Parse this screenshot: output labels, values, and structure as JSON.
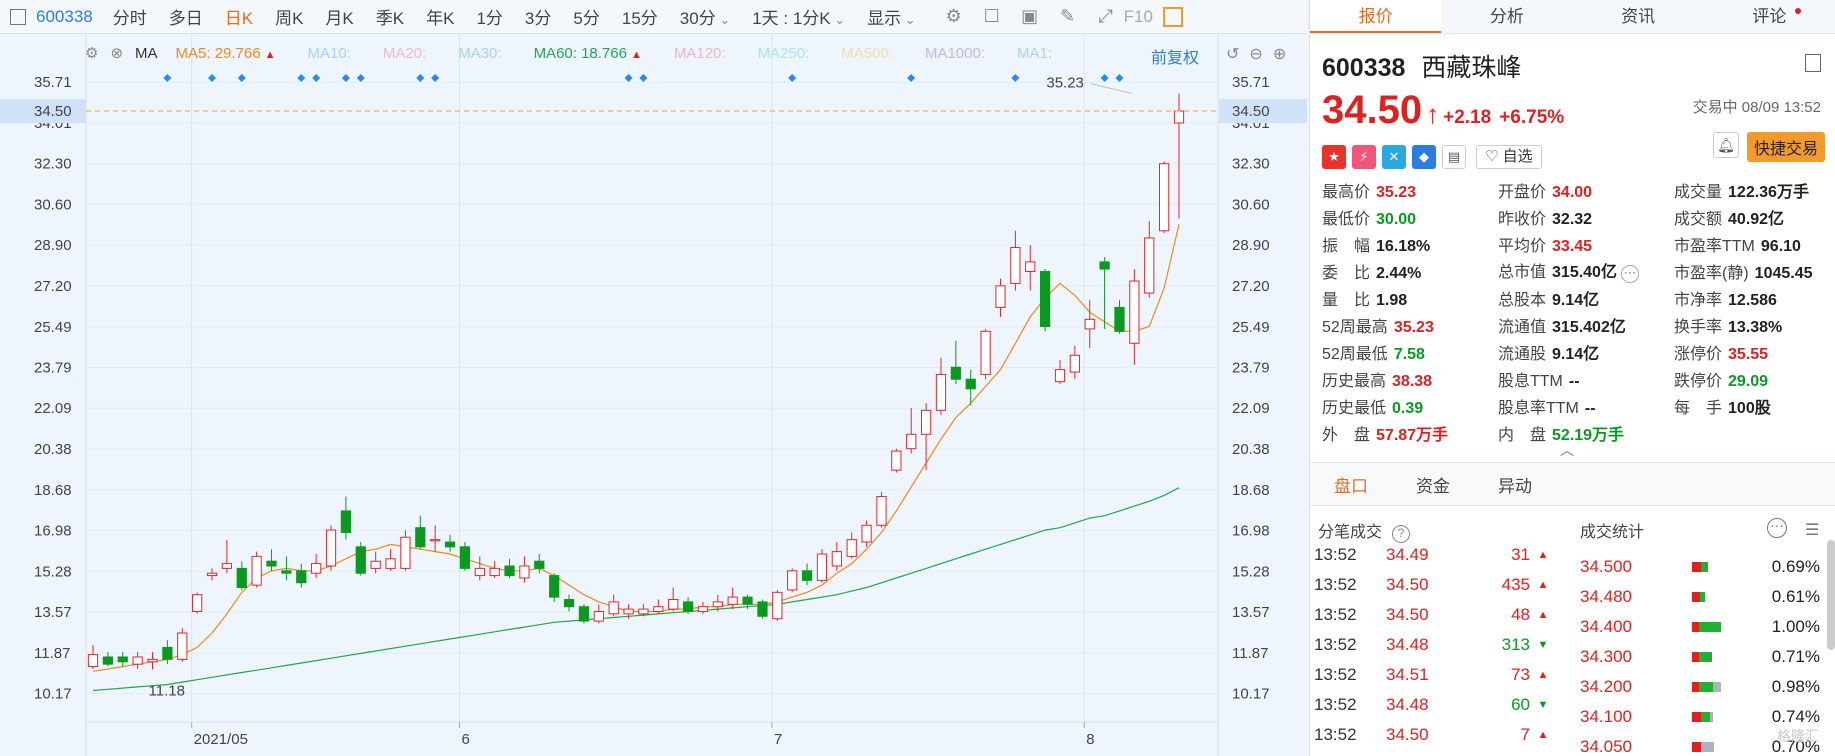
{
  "toolbar": {
    "code": "600338",
    "periods": [
      {
        "label": "分时",
        "active": false
      },
      {
        "label": "多日",
        "active": false
      },
      {
        "label": "日K",
        "active": true
      },
      {
        "label": "周K",
        "active": false
      },
      {
        "label": "月K",
        "active": false
      },
      {
        "label": "季K",
        "active": false
      },
      {
        "label": "年K",
        "active": false
      },
      {
        "label": "1分",
        "active": false
      },
      {
        "label": "3分",
        "active": false
      },
      {
        "label": "5分",
        "active": false
      },
      {
        "label": "15分",
        "active": false
      },
      {
        "label": "30分",
        "active": false
      }
    ],
    "range_select": "1天 : 1分K",
    "display_label": "显示",
    "f10_label": "F10"
  },
  "ma_line": {
    "type_label": "MA",
    "items": [
      {
        "label": "MA5: 29.766",
        "color": "#f08a1e",
        "arrow": true
      },
      {
        "label": "MA10:",
        "color": "#a9d2f2"
      },
      {
        "label": "MA20:",
        "color": "#f4b6d4"
      },
      {
        "label": "MA30:",
        "color": "#a9d2f2"
      },
      {
        "label": "MA60: 18.766",
        "color": "#22a84e",
        "arrow": true
      },
      {
        "label": "MA120:",
        "color": "#f4b6c4"
      },
      {
        "label": "MA250:",
        "color": "#a9e6f2"
      },
      {
        "label": "MA500:",
        "color": "#f2e0a9"
      },
      {
        "label": "MA1000:",
        "color": "#c4b6f2"
      },
      {
        "label": "MA1:",
        "color": "#a9d2f2"
      }
    ],
    "adjust_label": "前复权"
  },
  "chart_data": {
    "type": "candlestick",
    "y_ticks": [
      35.71,
      34.01,
      32.3,
      30.6,
      28.9,
      27.2,
      25.49,
      23.79,
      22.09,
      20.38,
      18.68,
      16.98,
      15.28,
      13.57,
      11.87,
      10.17
    ],
    "ylim": [
      8.4,
      37.3
    ],
    "x_labels": [
      {
        "label": "2021/05",
        "index": 7
      },
      {
        "label": "6",
        "index": 25
      },
      {
        "label": "7",
        "index": 46
      },
      {
        "label": "8",
        "index": 67
      }
    ],
    "current_price": 34.5,
    "annotations": [
      {
        "label": "35.23",
        "index": 70,
        "value": 35.23
      },
      {
        "label": "11.18",
        "index": 4,
        "value": 11.18
      }
    ],
    "markers_index": [
      5,
      8,
      10,
      14,
      15,
      17,
      18,
      22,
      23,
      36,
      37,
      47,
      55,
      62,
      68,
      69
    ],
    "candles": [
      {
        "o": 11.3,
        "c": 11.8,
        "h": 12.2,
        "l": 11.2
      },
      {
        "o": 11.7,
        "c": 11.4,
        "h": 11.9,
        "l": 11.3
      },
      {
        "o": 11.7,
        "c": 11.5,
        "h": 11.9,
        "l": 11.3
      },
      {
        "o": 11.4,
        "c": 11.7,
        "h": 11.9,
        "l": 11.2
      },
      {
        "o": 11.5,
        "c": 11.6,
        "h": 11.9,
        "l": 11.18
      },
      {
        "o": 12.1,
        "c": 11.6,
        "h": 12.4,
        "l": 11.4
      },
      {
        "o": 11.6,
        "c": 12.7,
        "h": 12.9,
        "l": 11.5
      },
      {
        "o": 13.6,
        "c": 14.3,
        "h": 14.4,
        "l": 13.5
      },
      {
        "o": 15.1,
        "c": 15.2,
        "h": 15.4,
        "l": 14.9
      },
      {
        "o": 15.4,
        "c": 15.6,
        "h": 16.6,
        "l": 15.2
      },
      {
        "o": 15.4,
        "c": 14.6,
        "h": 15.7,
        "l": 14.5
      },
      {
        "o": 14.7,
        "c": 15.9,
        "h": 16.1,
        "l": 14.6
      },
      {
        "o": 15.7,
        "c": 15.5,
        "h": 16.2,
        "l": 15.3
      },
      {
        "o": 15.3,
        "c": 15.2,
        "h": 15.9,
        "l": 14.9
      },
      {
        "o": 15.3,
        "c": 14.8,
        "h": 15.6,
        "l": 14.6
      },
      {
        "o": 15.2,
        "c": 15.6,
        "h": 16.0,
        "l": 15.0
      },
      {
        "o": 15.5,
        "c": 17.0,
        "h": 17.2,
        "l": 15.3
      },
      {
        "o": 17.8,
        "c": 16.9,
        "h": 18.4,
        "l": 16.6
      },
      {
        "o": 16.3,
        "c": 15.2,
        "h": 16.5,
        "l": 15.1
      },
      {
        "o": 15.4,
        "c": 15.7,
        "h": 16.1,
        "l": 15.2
      },
      {
        "o": 15.4,
        "c": 15.8,
        "h": 16.2,
        "l": 15.3
      },
      {
        "o": 15.4,
        "c": 16.7,
        "h": 17.0,
        "l": 15.3
      },
      {
        "o": 17.1,
        "c": 16.3,
        "h": 17.6,
        "l": 16.2
      },
      {
        "o": 16.6,
        "c": 16.6,
        "h": 17.2,
        "l": 16.1
      },
      {
        "o": 16.5,
        "c": 16.3,
        "h": 16.8,
        "l": 16.1
      },
      {
        "o": 16.3,
        "c": 15.4,
        "h": 16.5,
        "l": 15.3
      },
      {
        "o": 15.1,
        "c": 15.4,
        "h": 15.9,
        "l": 14.9
      },
      {
        "o": 15.1,
        "c": 15.4,
        "h": 15.7,
        "l": 15.0
      },
      {
        "o": 15.5,
        "c": 15.1,
        "h": 15.8,
        "l": 15.0
      },
      {
        "o": 15.0,
        "c": 15.5,
        "h": 15.9,
        "l": 14.8
      },
      {
        "o": 15.7,
        "c": 15.4,
        "h": 16.0,
        "l": 15.2
      },
      {
        "o": 15.1,
        "c": 14.2,
        "h": 15.2,
        "l": 14.0
      },
      {
        "o": 14.1,
        "c": 13.8,
        "h": 14.3,
        "l": 13.6
      },
      {
        "o": 13.8,
        "c": 13.2,
        "h": 13.9,
        "l": 13.1
      },
      {
        "o": 13.2,
        "c": 13.6,
        "h": 13.9,
        "l": 13.1
      },
      {
        "o": 13.5,
        "c": 14.0,
        "h": 14.3,
        "l": 13.4
      },
      {
        "o": 13.5,
        "c": 13.7,
        "h": 13.9,
        "l": 13.3
      },
      {
        "o": 13.5,
        "c": 13.7,
        "h": 13.9,
        "l": 13.4
      },
      {
        "o": 13.6,
        "c": 13.8,
        "h": 14.1,
        "l": 13.5
      },
      {
        "o": 13.7,
        "c": 14.1,
        "h": 14.6,
        "l": 13.6
      },
      {
        "o": 14.0,
        "c": 13.6,
        "h": 14.2,
        "l": 13.5
      },
      {
        "o": 13.6,
        "c": 13.8,
        "h": 14.0,
        "l": 13.5
      },
      {
        "o": 13.8,
        "c": 14.0,
        "h": 14.3,
        "l": 13.6
      },
      {
        "o": 13.9,
        "c": 14.2,
        "h": 14.6,
        "l": 13.7
      },
      {
        "o": 14.2,
        "c": 13.9,
        "h": 14.3,
        "l": 13.7
      },
      {
        "o": 14.0,
        "c": 13.4,
        "h": 14.1,
        "l": 13.3
      },
      {
        "o": 13.3,
        "c": 14.4,
        "h": 14.5,
        "l": 13.2
      },
      {
        "o": 14.5,
        "c": 15.3,
        "h": 15.4,
        "l": 14.4
      },
      {
        "o": 15.3,
        "c": 14.9,
        "h": 15.6,
        "l": 14.7
      },
      {
        "o": 14.9,
        "c": 16.0,
        "h": 16.2,
        "l": 14.8
      },
      {
        "o": 15.5,
        "c": 16.1,
        "h": 16.5,
        "l": 15.3
      },
      {
        "o": 15.9,
        "c": 16.6,
        "h": 16.9,
        "l": 15.8
      },
      {
        "o": 16.5,
        "c": 17.2,
        "h": 17.4,
        "l": 16.3
      },
      {
        "o": 17.2,
        "c": 18.4,
        "h": 18.6,
        "l": 17.1
      },
      {
        "o": 19.5,
        "c": 20.3,
        "h": 20.4,
        "l": 19.4
      },
      {
        "o": 20.4,
        "c": 21.0,
        "h": 22.1,
        "l": 20.2
      },
      {
        "o": 21.0,
        "c": 22.0,
        "h": 22.3,
        "l": 19.5
      },
      {
        "o": 22.0,
        "c": 23.5,
        "h": 24.2,
        "l": 21.8
      },
      {
        "o": 23.8,
        "c": 23.3,
        "h": 24.9,
        "l": 23.1
      },
      {
        "o": 23.3,
        "c": 22.9,
        "h": 23.7,
        "l": 22.2
      },
      {
        "o": 23.5,
        "c": 25.3,
        "h": 25.4,
        "l": 23.3
      },
      {
        "o": 26.3,
        "c": 27.2,
        "h": 27.5,
        "l": 25.9
      },
      {
        "o": 27.3,
        "c": 28.8,
        "h": 29.5,
        "l": 27.0
      },
      {
        "o": 27.8,
        "c": 28.2,
        "h": 28.9,
        "l": 27.0
      },
      {
        "o": 27.8,
        "c": 25.5,
        "h": 27.9,
        "l": 25.3
      },
      {
        "o": 23.2,
        "c": 23.7,
        "h": 24.1,
        "l": 23.1
      },
      {
        "o": 23.6,
        "c": 24.3,
        "h": 24.7,
        "l": 23.3
      },
      {
        "o": 25.4,
        "c": 25.8,
        "h": 26.6,
        "l": 24.6
      },
      {
        "o": 28.2,
        "c": 27.9,
        "h": 28.4,
        "l": 25.4
      },
      {
        "o": 26.3,
        "c": 25.3,
        "h": 26.6,
        "l": 25.2
      },
      {
        "o": 24.8,
        "c": 27.4,
        "h": 27.9,
        "l": 23.9
      },
      {
        "o": 26.9,
        "c": 29.2,
        "h": 29.9,
        "l": 26.7
      },
      {
        "o": 29.5,
        "c": 32.3,
        "h": 32.4,
        "l": 29.4
      },
      {
        "o": 34.0,
        "c": 34.5,
        "h": 35.23,
        "l": 30.0
      }
    ],
    "ma5": [
      11.1,
      11.2,
      11.3,
      11.4,
      11.5,
      11.6,
      11.8,
      12.1,
      12.7,
      13.5,
      14.4,
      15.0,
      15.3,
      15.4,
      15.3,
      15.3,
      15.5,
      15.8,
      16.1,
      16.2,
      16.4,
      16.3,
      16.2,
      16.1,
      16.0,
      15.8,
      15.6,
      15.4,
      15.3,
      15.3,
      15.4,
      15.1,
      14.7,
      14.3,
      14.0,
      13.8,
      13.6,
      13.6,
      13.6,
      13.7,
      13.7,
      13.8,
      13.8,
      13.9,
      13.9,
      13.9,
      14.0,
      14.2,
      14.4,
      14.7,
      15.2,
      15.6,
      16.2,
      16.9,
      17.8,
      18.8,
      19.8,
      20.8,
      21.7,
      22.3,
      23.0,
      23.7,
      24.8,
      25.9,
      26.7,
      27.3,
      26.8,
      26.1,
      25.7,
      25.3,
      25.3,
      25.5,
      27.1,
      29.77
    ],
    "ma60": [
      10.3,
      10.35,
      10.4,
      10.45,
      10.5,
      10.55,
      10.65,
      10.75,
      10.85,
      10.95,
      11.05,
      11.15,
      11.25,
      11.35,
      11.45,
      11.55,
      11.65,
      11.75,
      11.85,
      11.95,
      12.05,
      12.15,
      12.25,
      12.35,
      12.45,
      12.55,
      12.65,
      12.75,
      12.85,
      12.95,
      13.05,
      13.15,
      13.2,
      13.25,
      13.3,
      13.35,
      13.4,
      13.45,
      13.5,
      13.55,
      13.6,
      13.65,
      13.7,
      13.75,
      13.8,
      13.85,
      13.9,
      14.0,
      14.1,
      14.2,
      14.3,
      14.45,
      14.6,
      14.8,
      15.0,
      15.2,
      15.4,
      15.6,
      15.8,
      16.0,
      16.2,
      16.4,
      16.6,
      16.8,
      17.0,
      17.1,
      17.3,
      17.5,
      17.6,
      17.8,
      18.0,
      18.2,
      18.45,
      18.77
    ]
  },
  "right_panel": {
    "tabs": [
      {
        "label": "报价",
        "active": true
      },
      {
        "label": "分析",
        "active": false
      },
      {
        "label": "资讯",
        "active": false
      },
      {
        "label": "评论",
        "active": false,
        "dot": true
      }
    ],
    "code": "600338",
    "name": "西藏珠峰",
    "price": "34.50",
    "change": "+2.18",
    "change_pct": "+6.75%",
    "status": "交易中 08/09 13:52",
    "watch_label": "自选",
    "quick_trade_label": "快捷交易",
    "quote_rows": [
      [
        {
          "k": "最高价",
          "v": "35.23",
          "c": "red"
        },
        {
          "k": "开盘价",
          "v": "34.00",
          "c": "red"
        },
        {
          "k": "成交量",
          "v": "122.36万手",
          "c": "dark"
        }
      ],
      [
        {
          "k": "最低价",
          "v": "30.00",
          "c": "green"
        },
        {
          "k": "昨收价",
          "v": "32.32",
          "c": "dark"
        },
        {
          "k": "成交额",
          "v": "40.92亿",
          "c": "dark"
        }
      ],
      [
        {
          "k": "振　幅",
          "v": "16.18%",
          "c": "dark"
        },
        {
          "k": "平均价",
          "v": "33.45",
          "c": "red"
        },
        {
          "k": "市盈率TTM",
          "v": "96.10",
          "c": "dark"
        }
      ],
      [
        {
          "k": "委　比",
          "v": "2.44%",
          "c": "dark"
        },
        {
          "k": "总市值",
          "v": "315.40亿",
          "c": "dark"
        },
        {
          "k": "市盈率(静)",
          "v": "1045.45",
          "c": "dark"
        }
      ],
      [
        {
          "k": "量　比",
          "v": "1.98",
          "c": "dark"
        },
        {
          "k": "总股本",
          "v": "9.14亿",
          "c": "dark"
        },
        {
          "k": "市净率",
          "v": "12.586",
          "c": "dark"
        }
      ],
      [
        {
          "k": "52周最高",
          "v": "35.23",
          "c": "red"
        },
        {
          "k": "流通值",
          "v": "315.402亿",
          "c": "dark"
        },
        {
          "k": "换手率",
          "v": "13.38%",
          "c": "dark"
        }
      ],
      [
        {
          "k": "52周最低",
          "v": "7.58",
          "c": "green"
        },
        {
          "k": "流通股",
          "v": "9.14亿",
          "c": "dark"
        },
        {
          "k": "涨停价",
          "v": "35.55",
          "c": "red"
        }
      ],
      [
        {
          "k": "历史最高",
          "v": "38.38",
          "c": "red"
        },
        {
          "k": "股息TTM",
          "v": "--",
          "c": "dark"
        },
        {
          "k": "跌停价",
          "v": "29.09",
          "c": "green"
        }
      ],
      [
        {
          "k": "历史最低",
          "v": "0.39",
          "c": "green"
        },
        {
          "k": "股息率TTM",
          "v": "--",
          "c": "dark"
        },
        {
          "k": "每　手",
          "v": "100股",
          "c": "dark"
        }
      ],
      [
        {
          "k": "外　盘",
          "v": "57.87万手",
          "c": "red"
        },
        {
          "k": "内　盘",
          "v": "52.19万手",
          "c": "green"
        },
        {
          "k": "",
          "v": "",
          "c": "dark"
        }
      ]
    ],
    "section_tabs": [
      {
        "label": "盘口",
        "active": true
      },
      {
        "label": "资金",
        "active": false
      },
      {
        "label": "异动",
        "active": false
      }
    ],
    "trades_title": "分笔成交",
    "stats_title": "成交统计",
    "trades": [
      {
        "t": "13:52",
        "p": "34.49",
        "v": "31",
        "dir": "up"
      },
      {
        "t": "13:52",
        "p": "34.50",
        "v": "435",
        "dir": "up"
      },
      {
        "t": "13:52",
        "p": "34.50",
        "v": "48",
        "dir": "up"
      },
      {
        "t": "13:52",
        "p": "34.48",
        "v": "313",
        "dir": "down"
      },
      {
        "t": "13:52",
        "p": "34.51",
        "v": "73",
        "dir": "up"
      },
      {
        "t": "13:52",
        "p": "34.48",
        "v": "60",
        "dir": "down"
      },
      {
        "t": "13:52",
        "p": "34.50",
        "v": "7",
        "dir": "up"
      }
    ],
    "stats": [
      {
        "p": "34.500",
        "pct": "0.69%",
        "red": 0.14,
        "green": 0.1,
        "gray": 0.0
      },
      {
        "p": "34.480",
        "pct": "0.61%",
        "red": 0.12,
        "green": 0.08,
        "gray": 0.0
      },
      {
        "p": "34.400",
        "pct": "1.00%",
        "red": 0.1,
        "green": 0.34,
        "gray": 0.0
      },
      {
        "p": "34.300",
        "pct": "0.71%",
        "red": 0.1,
        "green": 0.2,
        "gray": 0.0
      },
      {
        "p": "34.200",
        "pct": "0.98%",
        "red": 0.1,
        "green": 0.22,
        "gray": 0.12
      },
      {
        "p": "34.100",
        "pct": "0.74%",
        "red": 0.14,
        "green": 0.14,
        "gray": 0.04
      },
      {
        "p": "34.050",
        "pct": "0.70%",
        "red": 0.14,
        "green": 0.0,
        "gray": 0.2
      }
    ],
    "watermark": "格隆汇"
  }
}
